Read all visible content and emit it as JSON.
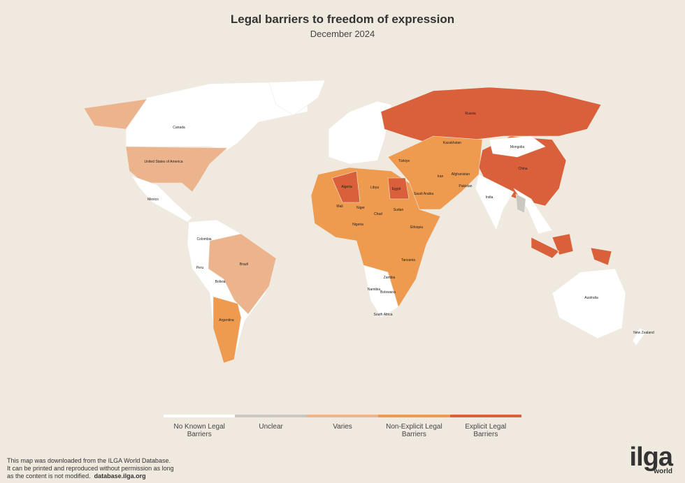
{
  "header": {
    "title": "Legal barriers to freedom of expression",
    "subtitle": "December 2024"
  },
  "legend": [
    {
      "label": "No Known Legal Barriers",
      "color": "#ffffff"
    },
    {
      "label": "Unclear",
      "color": "#c9c7c0"
    },
    {
      "label": "Varies",
      "color": "#ebb48d"
    },
    {
      "label": "Non-Explicit Legal Barriers",
      "color": "#ee9a4f"
    },
    {
      "label": "Explicit Legal Barriers",
      "color": "#d9603a"
    }
  ],
  "map_labels": [
    "Canada",
    "United States of America",
    "Mexico",
    "Colombia",
    "Peru",
    "Brazil",
    "Bolivia",
    "Argentina",
    "Algeria",
    "Libya",
    "Egypt",
    "Mali",
    "Niger",
    "Chad",
    "Sudan",
    "Nigeria",
    "Ethiopia",
    "Tanzania",
    "Zambia",
    "Namibia",
    "Botswana",
    "South Africa",
    "Russia",
    "Kazakhstan",
    "Mongolia",
    "China",
    "India",
    "Iran",
    "Saudi Arabia",
    "Türkiye",
    "Afghanistan",
    "Pakistan",
    "Australia",
    "New Zealand"
  ],
  "footer": {
    "lines": [
      "This map was downloaded from the ILGA World Database.",
      "It can be printed and reproduced without permission as long",
      "as the content is not modified."
    ],
    "link": "database.ilga.org"
  },
  "logo": {
    "name": "ilga",
    "tagline": "world"
  }
}
